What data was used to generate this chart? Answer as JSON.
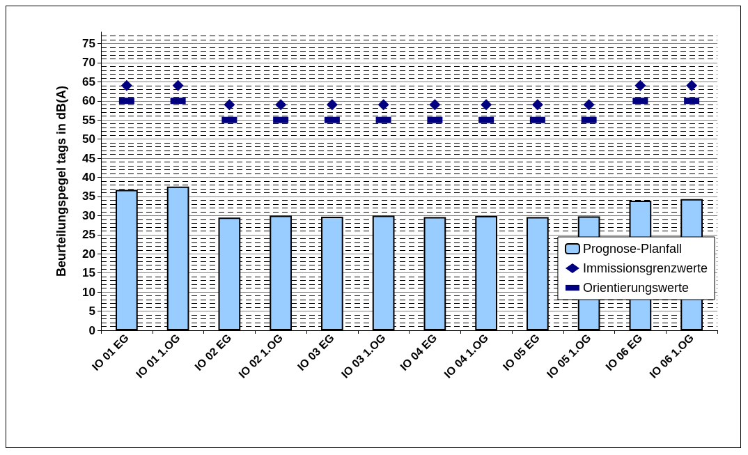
{
  "chart_data": {
    "type": "bar",
    "ylabel": "Beurteilungspegel tags in dB(A)",
    "categories": [
      "IO 01 EG",
      "IO 01 1.OG",
      "IO 02 EG",
      "IO 02 1.OG",
      "IO 03 EG",
      "IO 03 1.OG",
      "IO 04 EG",
      "IO 04 1.OG",
      "IO 05 EG",
      "IO 05 1.OG",
      "IO 06 EG",
      "IO 06 1.OG"
    ],
    "series": [
      {
        "name": "Prognose-Planfall",
        "color": "#99ccff",
        "values": [
          36.7,
          37.6,
          29.5,
          30.0,
          29.7,
          30.0,
          29.6,
          29.9,
          29.6,
          29.8,
          33.9,
          34.3
        ]
      },
      {
        "name": "Immissionsgrenzwerte",
        "type": "scatter",
        "marker": "diamond",
        "color": "#000080",
        "values": [
          64,
          64,
          59,
          59,
          59,
          59,
          59,
          59,
          59,
          59,
          64,
          64
        ]
      },
      {
        "name": "Orientierungswerte",
        "type": "scatter",
        "marker": "square",
        "color": "#000080",
        "values": [
          60,
          60,
          55,
          55,
          55,
          55,
          55,
          55,
          55,
          55,
          60,
          60
        ]
      }
    ],
    "ylim": [
      0,
      78
    ],
    "yticks": [
      0,
      5,
      10,
      15,
      20,
      25,
      30,
      35,
      40,
      45,
      50,
      55,
      60,
      65,
      70,
      75
    ],
    "grid": "y",
    "legend": "bottom right"
  }
}
